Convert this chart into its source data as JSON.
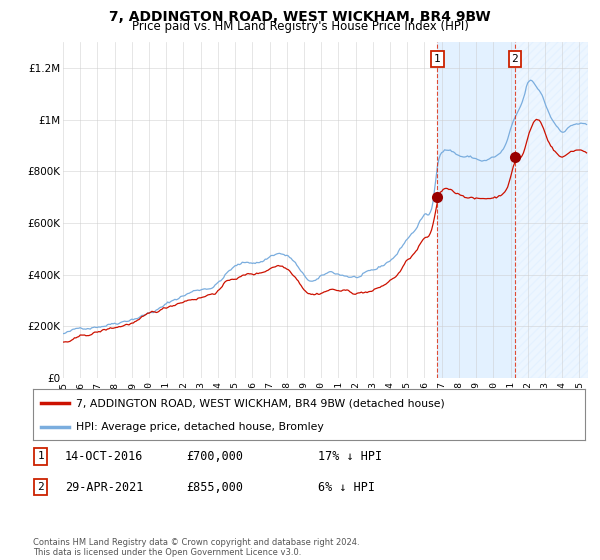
{
  "title": "7, ADDINGTON ROAD, WEST WICKHAM, BR4 9BW",
  "subtitle": "Price paid vs. HM Land Registry's House Price Index (HPI)",
  "ylim": [
    0,
    1300000
  ],
  "yticks": [
    0,
    200000,
    400000,
    600000,
    800000,
    1000000,
    1200000
  ],
  "ytick_labels": [
    "£0",
    "£200K",
    "£400K",
    "£600K",
    "£800K",
    "£1M",
    "£1.2M"
  ],
  "grid_color": "#cccccc",
  "hpi_color": "#7aadde",
  "price_color": "#cc1100",
  "shade_color": "#ddeeff",
  "hatch_color": "#bbccdd",
  "sale1_year": 2016,
  "sale1_month": 10,
  "sale1_price": 700000,
  "sale2_year": 2021,
  "sale2_month": 4,
  "sale2_price": 855000,
  "legend_line1": "7, ADDINGTON ROAD, WEST WICKHAM, BR4 9BW (detached house)",
  "legend_line2": "HPI: Average price, detached house, Bromley",
  "footer": "Contains HM Land Registry data © Crown copyright and database right 2024.\nThis data is licensed under the Open Government Licence v3.0.",
  "x_year_labels": [
    1995,
    1996,
    1997,
    1998,
    1999,
    2000,
    2001,
    2002,
    2003,
    2004,
    2005,
    2006,
    2007,
    2008,
    2009,
    2010,
    2011,
    2012,
    2013,
    2014,
    2015,
    2016,
    2017,
    2018,
    2019,
    2020,
    2021,
    2022,
    2023,
    2024,
    2025
  ],
  "start_year": 1995,
  "start_month": 1,
  "end_year": 2025,
  "end_month": 6
}
